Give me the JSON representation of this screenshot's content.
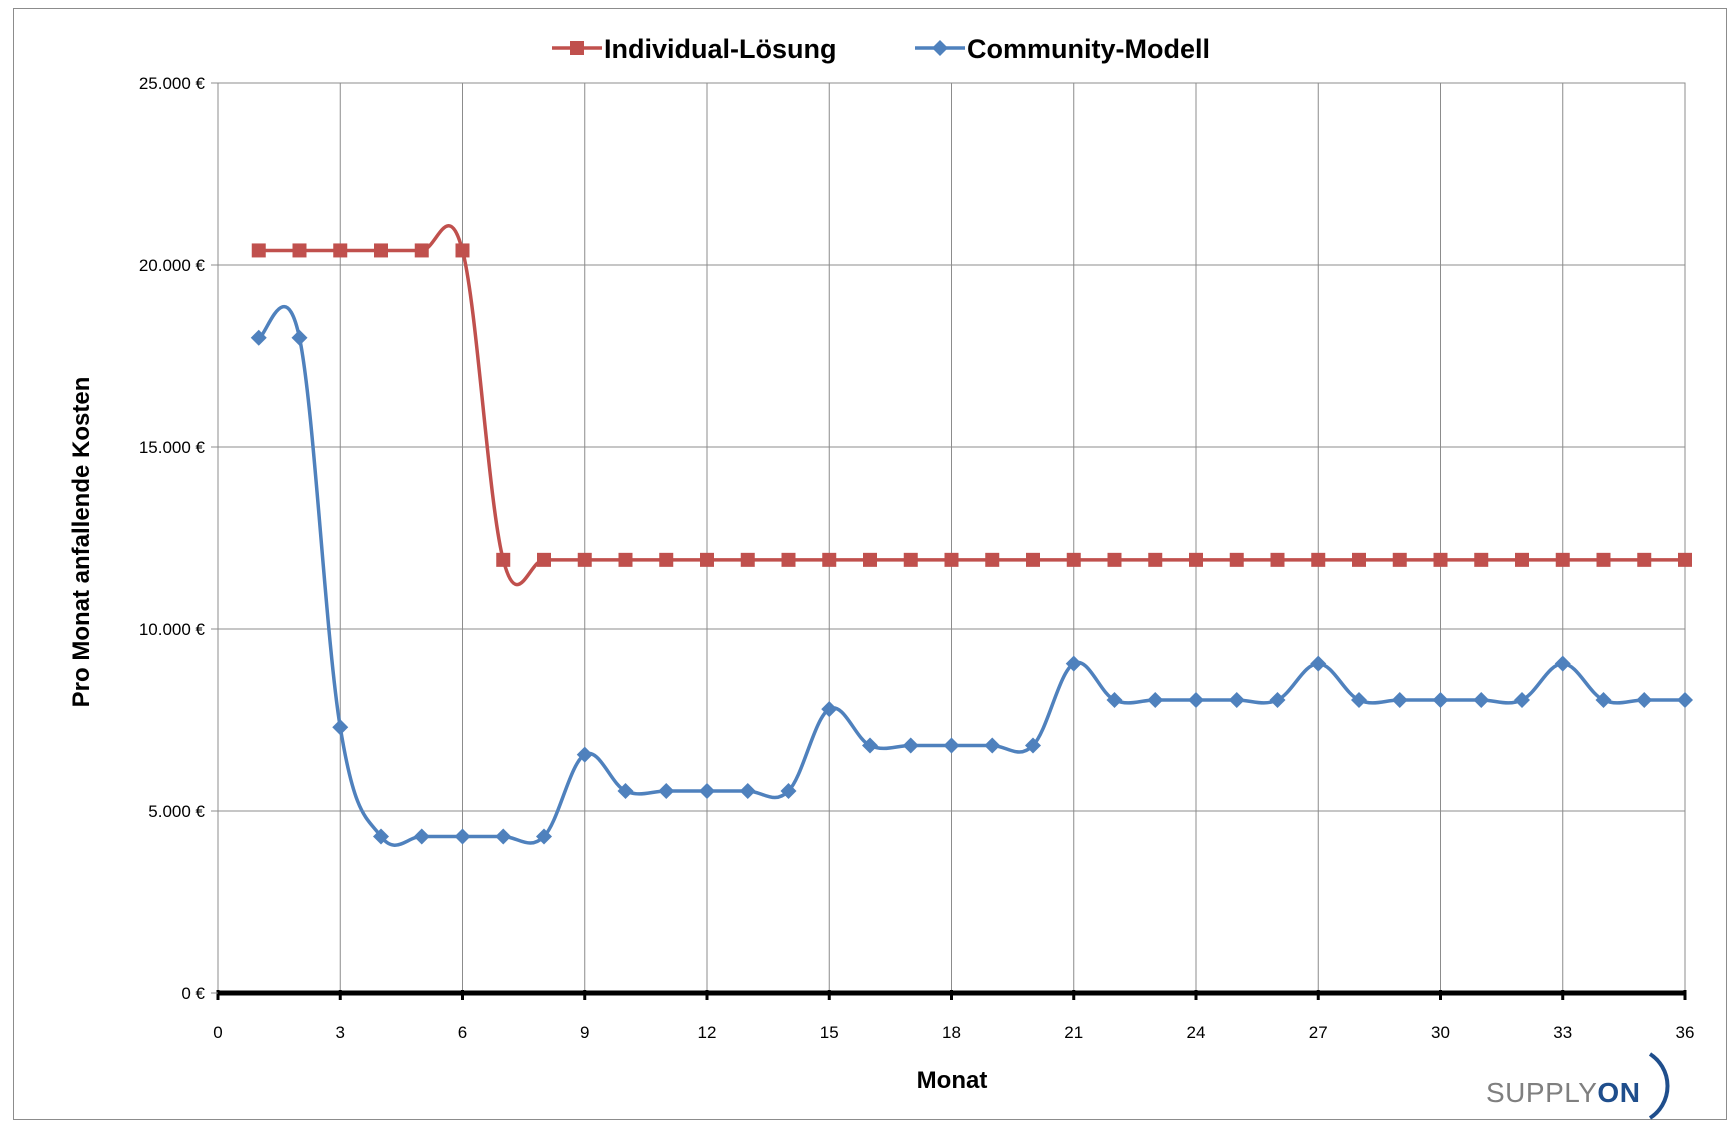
{
  "chart_data": {
    "type": "line",
    "title": "",
    "xlabel": "Monat",
    "ylabel": "Pro Monat anfallende Kosten",
    "xlim": [
      0,
      36
    ],
    "ylim": [
      0,
      25000
    ],
    "x_ticks": [
      "0",
      "3",
      "6",
      "9",
      "12",
      "15",
      "18",
      "21",
      "24",
      "27",
      "30",
      "33",
      "36"
    ],
    "y_ticks": [
      "0 €",
      "5.000 €",
      "10.000 €",
      "15.000 €",
      "20.000 €",
      "25.000 €"
    ],
    "y_tick_values": [
      0,
      5000,
      10000,
      15000,
      20000,
      25000
    ],
    "x_tick_values": [
      0,
      3,
      6,
      9,
      12,
      15,
      18,
      21,
      24,
      27,
      30,
      33,
      36
    ],
    "grid": true,
    "legend_position": "top-center",
    "x": [
      1,
      2,
      3,
      4,
      5,
      6,
      7,
      8,
      9,
      10,
      11,
      12,
      13,
      14,
      15,
      16,
      17,
      18,
      19,
      20,
      21,
      22,
      23,
      24,
      25,
      26,
      27,
      28,
      29,
      30,
      31,
      32,
      33,
      34,
      35,
      36
    ],
    "series": [
      {
        "name": "Individual-Lösung",
        "color": "#c0504d",
        "marker": "square",
        "values": [
          20400,
          20400,
          20400,
          20400,
          20400,
          20400,
          11900,
          11900,
          11900,
          11900,
          11900,
          11900,
          11900,
          11900,
          11900,
          11900,
          11900,
          11900,
          11900,
          11900,
          11900,
          11900,
          11900,
          11900,
          11900,
          11900,
          11900,
          11900,
          11900,
          11900,
          11900,
          11900,
          11900,
          11900,
          11900,
          11900
        ]
      },
      {
        "name": "Community-Modell",
        "color": "#4f81bd",
        "marker": "diamond",
        "values": [
          18000,
          18000,
          7300,
          4300,
          4300,
          4300,
          4300,
          4300,
          6550,
          5550,
          5550,
          5550,
          5550,
          5550,
          7800,
          6800,
          6800,
          6800,
          6800,
          6800,
          9050,
          8050,
          8050,
          8050,
          8050,
          8050,
          9050,
          8050,
          8050,
          8050,
          8050,
          8050,
          9050,
          8050,
          8050,
          8050
        ]
      }
    ]
  },
  "logo": {
    "text_a": "SUPPLY",
    "text_b": "ON"
  }
}
